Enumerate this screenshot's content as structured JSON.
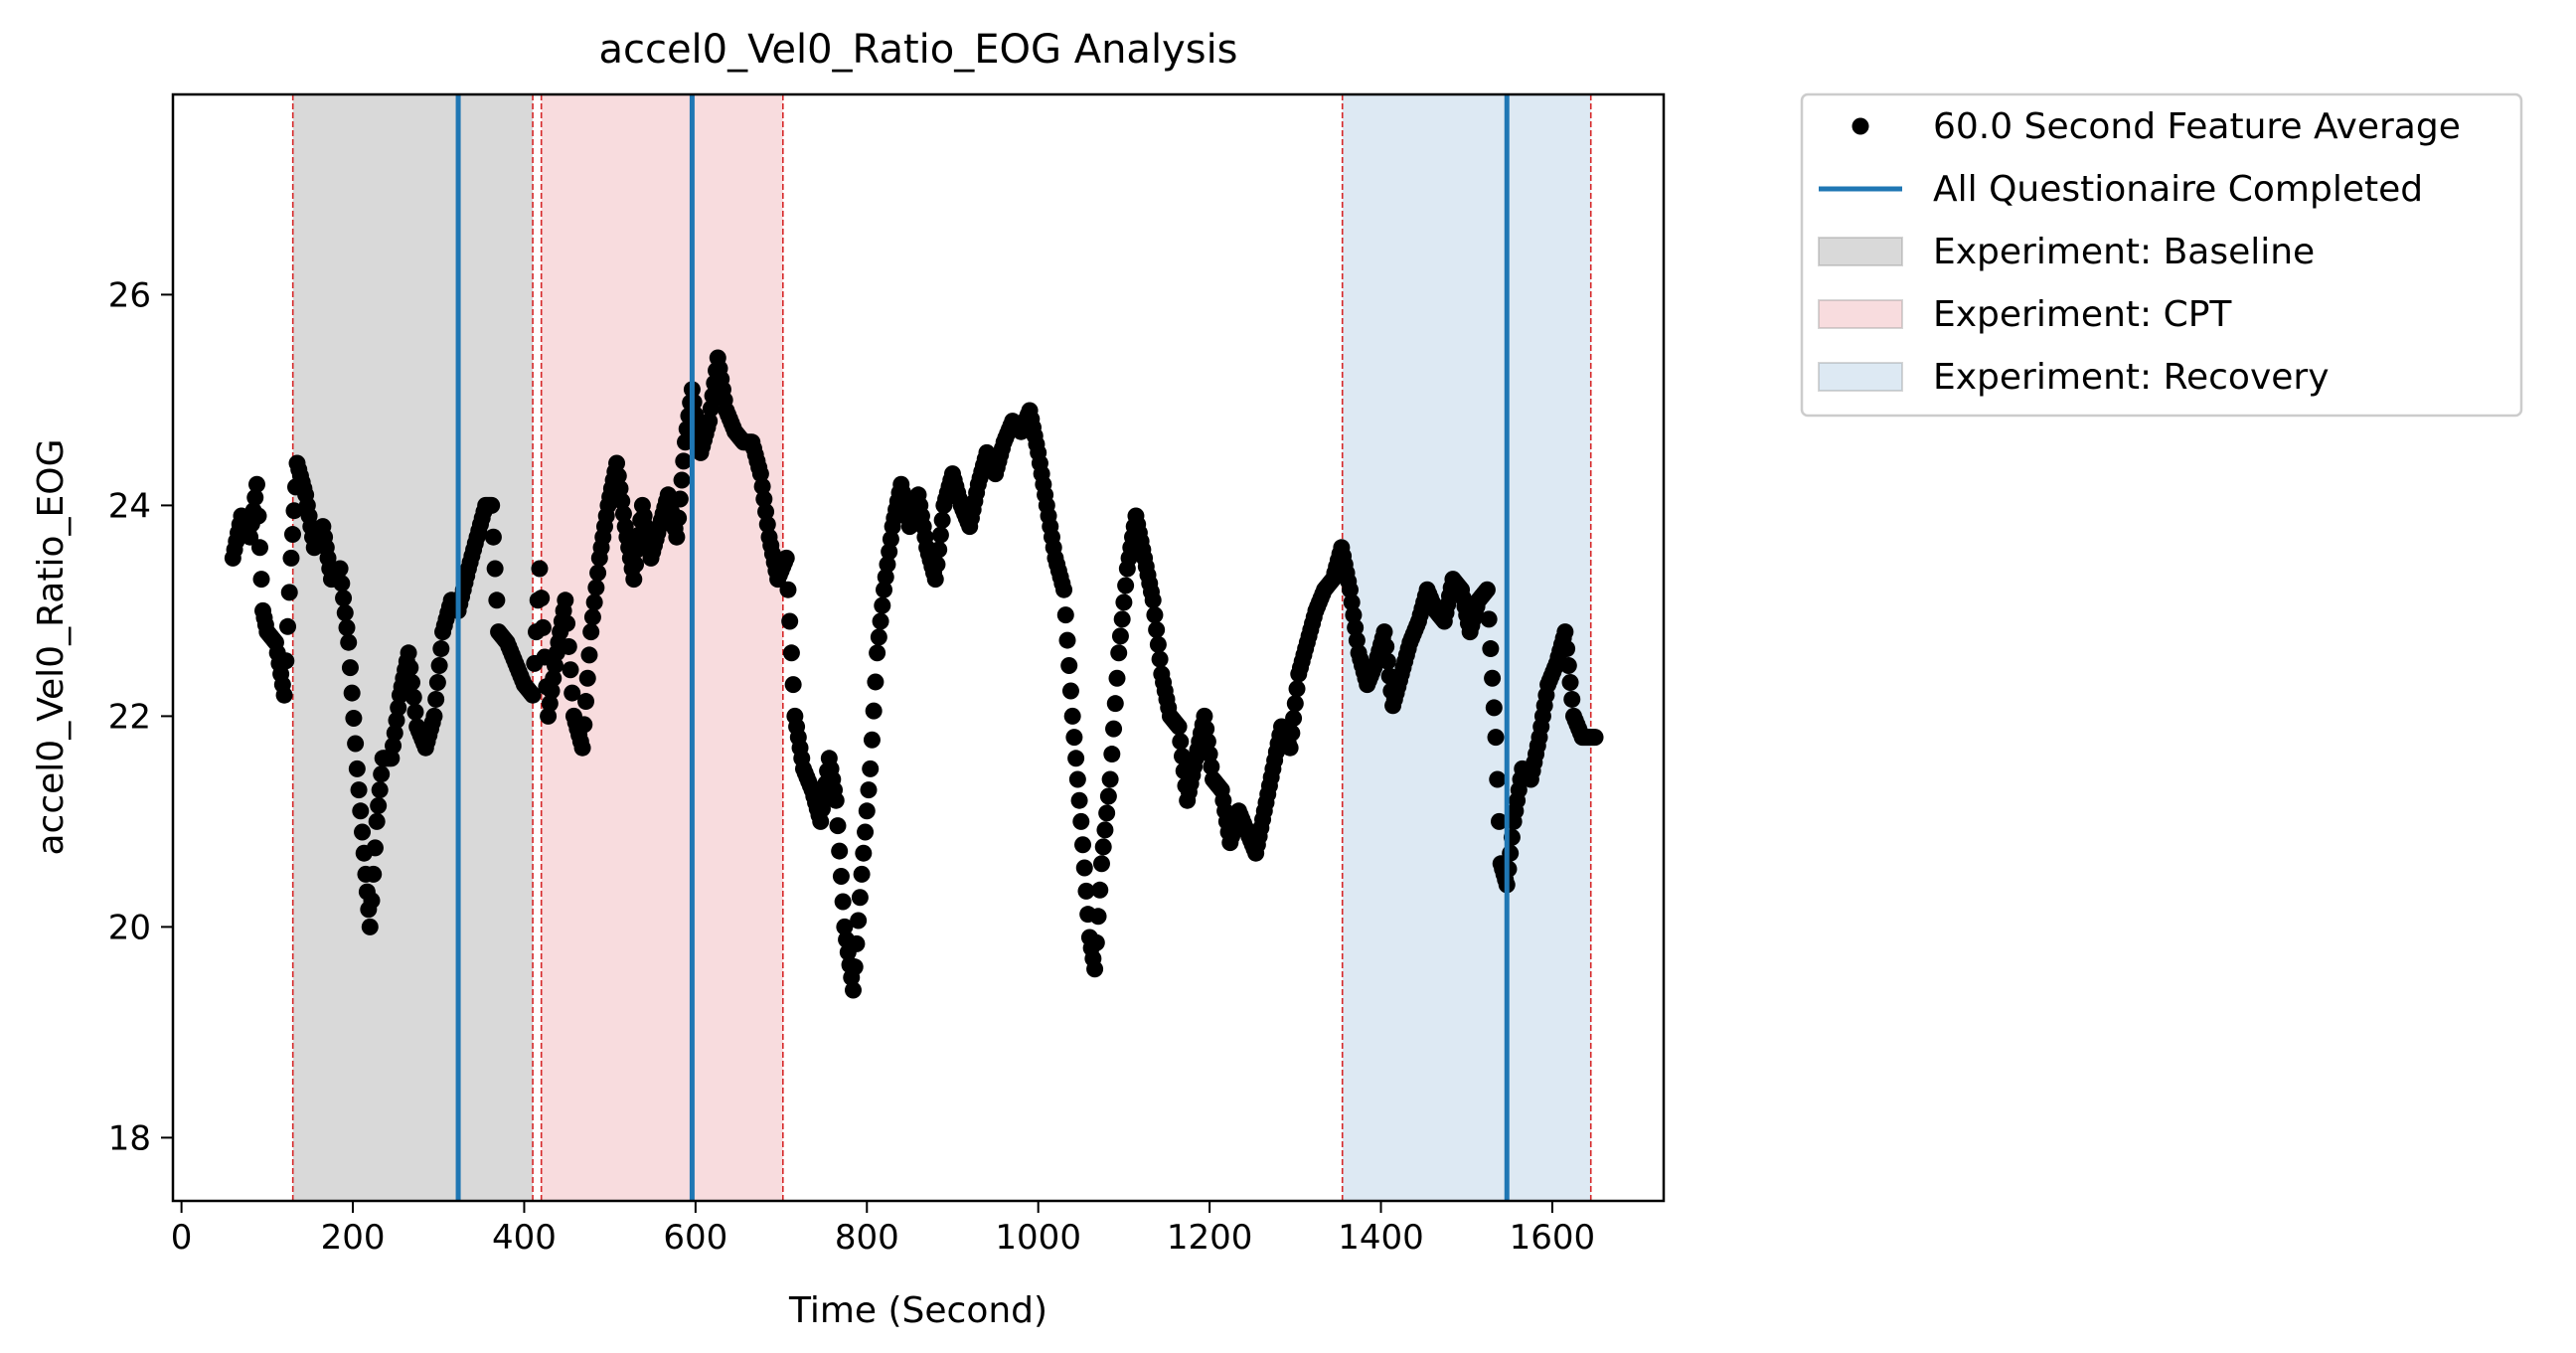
{
  "chart_data": {
    "type": "scatter",
    "title": "accel0_Vel0_Ratio_EOG Analysis",
    "xlabel": "Time (Second)",
    "ylabel": "accel0_Vel0_Ratio_EOG",
    "xlim": [
      -10,
      1730
    ],
    "ylim": [
      17.4,
      27.9
    ],
    "xticks": [
      0,
      200,
      400,
      600,
      800,
      1000,
      1200,
      1400,
      1600
    ],
    "yticks": [
      18,
      20,
      22,
      24,
      26
    ],
    "grid": false,
    "legend_position": "outside-right-top",
    "legend": [
      {
        "label": "60.0 Second Feature Average",
        "kind": "marker",
        "color": "#000000"
      },
      {
        "label": "All Questionaire Completed",
        "kind": "line",
        "color": "#1f77b4"
      },
      {
        "label": "Experiment: Baseline",
        "kind": "patch",
        "color": "#d9d9d9"
      },
      {
        "label": "Experiment: CPT",
        "kind": "patch",
        "color": "#f8dcde"
      },
      {
        "label": "Experiment: Recovery",
        "kind": "patch",
        "color": "#dde9f3"
      }
    ],
    "spans": [
      {
        "name": "Experiment: Baseline",
        "x0": 130,
        "x1": 410,
        "color": "#d9d9d9"
      },
      {
        "name": "Experiment: CPT",
        "x0": 420,
        "x1": 702,
        "color": "#f8dcde"
      },
      {
        "name": "Experiment: Recovery",
        "x0": 1355,
        "x1": 1645,
        "color": "#dde9f3"
      }
    ],
    "boundary_lines": [
      130,
      410,
      420,
      702,
      1355,
      1645
    ],
    "questionnaire_lines": [
      323,
      596,
      1547
    ],
    "series": [
      {
        "name": "60.0 Second Feature Average",
        "color": "#000000",
        "points": [
          [
            60,
            23.5
          ],
          [
            70,
            23.9
          ],
          [
            80,
            23.7
          ],
          [
            88,
            24.2
          ],
          [
            95,
            23.0
          ],
          [
            100,
            22.8
          ],
          [
            110,
            22.7
          ],
          [
            120,
            22.2
          ],
          [
            128,
            23.5
          ],
          [
            135,
            24.4
          ],
          [
            145,
            24.1
          ],
          [
            155,
            23.6
          ],
          [
            165,
            23.8
          ],
          [
            175,
            23.3
          ],
          [
            185,
            23.4
          ],
          [
            195,
            22.7
          ],
          [
            205,
            21.5
          ],
          [
            215,
            20.5
          ],
          [
            220,
            20.0
          ],
          [
            228,
            21.0
          ],
          [
            235,
            21.6
          ],
          [
            245,
            21.6
          ],
          [
            255,
            22.2
          ],
          [
            265,
            22.6
          ],
          [
            275,
            21.9
          ],
          [
            285,
            21.7
          ],
          [
            295,
            22.0
          ],
          [
            305,
            22.8
          ],
          [
            315,
            23.1
          ],
          [
            323,
            23.0
          ],
          [
            335,
            23.4
          ],
          [
            345,
            23.7
          ],
          [
            355,
            24.0
          ],
          [
            362,
            24.0
          ],
          [
            370,
            22.8
          ],
          [
            380,
            22.7
          ],
          [
            390,
            22.5
          ],
          [
            400,
            22.3
          ],
          [
            410,
            22.2
          ],
          [
            418,
            23.4
          ],
          [
            428,
            22.0
          ],
          [
            438,
            22.6
          ],
          [
            448,
            23.1
          ],
          [
            458,
            22.0
          ],
          [
            468,
            21.7
          ],
          [
            478,
            22.8
          ],
          [
            488,
            23.5
          ],
          [
            498,
            24.0
          ],
          [
            508,
            24.4
          ],
          [
            518,
            23.8
          ],
          [
            528,
            23.3
          ],
          [
            538,
            24.0
          ],
          [
            548,
            23.5
          ],
          [
            558,
            23.8
          ],
          [
            568,
            24.1
          ],
          [
            578,
            23.7
          ],
          [
            588,
            24.6
          ],
          [
            596,
            25.1
          ],
          [
            606,
            24.5
          ],
          [
            616,
            24.8
          ],
          [
            626,
            25.4
          ],
          [
            636,
            24.9
          ],
          [
            646,
            24.7
          ],
          [
            656,
            24.6
          ],
          [
            666,
            24.6
          ],
          [
            676,
            24.3
          ],
          [
            686,
            23.7
          ],
          [
            696,
            23.3
          ],
          [
            706,
            23.5
          ],
          [
            716,
            22.0
          ],
          [
            726,
            21.5
          ],
          [
            736,
            21.3
          ],
          [
            746,
            21.0
          ],
          [
            756,
            21.6
          ],
          [
            764,
            21.2
          ],
          [
            774,
            20.0
          ],
          [
            784,
            19.4
          ],
          [
            794,
            20.5
          ],
          [
            804,
            21.5
          ],
          [
            812,
            22.6
          ],
          [
            820,
            23.2
          ],
          [
            830,
            23.8
          ],
          [
            840,
            24.2
          ],
          [
            850,
            23.8
          ],
          [
            860,
            24.1
          ],
          [
            870,
            23.6
          ],
          [
            880,
            23.3
          ],
          [
            890,
            24.0
          ],
          [
            900,
            24.3
          ],
          [
            910,
            24.0
          ],
          [
            920,
            23.8
          ],
          [
            930,
            24.2
          ],
          [
            940,
            24.5
          ],
          [
            950,
            24.3
          ],
          [
            960,
            24.6
          ],
          [
            970,
            24.8
          ],
          [
            980,
            24.7
          ],
          [
            990,
            24.9
          ],
          [
            1000,
            24.5
          ],
          [
            1010,
            24.0
          ],
          [
            1020,
            23.5
          ],
          [
            1030,
            23.2
          ],
          [
            1040,
            22.0
          ],
          [
            1050,
            21.0
          ],
          [
            1060,
            19.9
          ],
          [
            1066,
            19.6
          ],
          [
            1074,
            20.6
          ],
          [
            1084,
            21.4
          ],
          [
            1094,
            22.6
          ],
          [
            1104,
            23.4
          ],
          [
            1114,
            23.9
          ],
          [
            1124,
            23.5
          ],
          [
            1134,
            23.1
          ],
          [
            1144,
            22.4
          ],
          [
            1154,
            22.0
          ],
          [
            1164,
            21.9
          ],
          [
            1174,
            21.2
          ],
          [
            1184,
            21.6
          ],
          [
            1194,
            22.0
          ],
          [
            1204,
            21.4
          ],
          [
            1214,
            21.3
          ],
          [
            1224,
            20.8
          ],
          [
            1234,
            21.1
          ],
          [
            1244,
            20.9
          ],
          [
            1254,
            20.7
          ],
          [
            1264,
            21.1
          ],
          [
            1274,
            21.5
          ],
          [
            1284,
            21.9
          ],
          [
            1294,
            21.7
          ],
          [
            1304,
            22.4
          ],
          [
            1314,
            22.7
          ],
          [
            1324,
            23.0
          ],
          [
            1334,
            23.2
          ],
          [
            1344,
            23.3
          ],
          [
            1354,
            23.6
          ],
          [
            1364,
            23.2
          ],
          [
            1374,
            22.6
          ],
          [
            1384,
            22.3
          ],
          [
            1394,
            22.5
          ],
          [
            1404,
            22.8
          ],
          [
            1414,
            22.1
          ],
          [
            1424,
            22.4
          ],
          [
            1434,
            22.7
          ],
          [
            1444,
            22.9
          ],
          [
            1454,
            23.2
          ],
          [
            1464,
            23.0
          ],
          [
            1474,
            22.9
          ],
          [
            1484,
            23.3
          ],
          [
            1494,
            23.2
          ],
          [
            1504,
            22.8
          ],
          [
            1514,
            23.1
          ],
          [
            1524,
            23.2
          ],
          [
            1534,
            21.8
          ],
          [
            1540,
            20.6
          ],
          [
            1547,
            20.4
          ],
          [
            1555,
            21.0
          ],
          [
            1565,
            21.5
          ],
          [
            1575,
            21.4
          ],
          [
            1585,
            21.8
          ],
          [
            1595,
            22.3
          ],
          [
            1605,
            22.5
          ],
          [
            1615,
            22.8
          ],
          [
            1625,
            22.0
          ],
          [
            1635,
            21.8
          ],
          [
            1645,
            21.8
          ],
          [
            1650,
            21.8
          ]
        ]
      }
    ]
  }
}
